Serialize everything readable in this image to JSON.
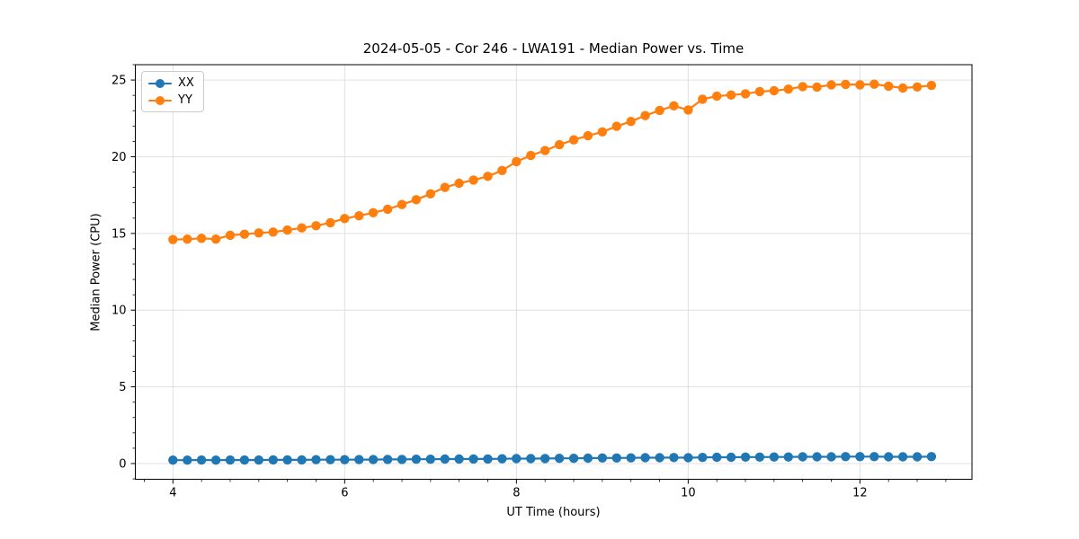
{
  "figure": {
    "title": "2024-05-05 - Cor 246 - LWA191 - Median Power vs. Time",
    "xlabel": "UT Time (hours)",
    "ylabel": "Median Power (CPU)"
  },
  "chart_data": {
    "type": "line",
    "title": "2024-05-05 - Cor 246 - LWA191 - Median Power vs. Time",
    "xlabel": "UT Time (hours)",
    "ylabel": "Median Power (CPU)",
    "xlim": [
      3.562,
      13.305
    ],
    "ylim": [
      -1.025,
      26.0
    ],
    "x_major_ticks": [
      4,
      6,
      8,
      10,
      12
    ],
    "x_major_tick_labels": [
      "4",
      "6",
      "8",
      "10",
      "12"
    ],
    "x_minor_step": 0.33333,
    "y_major_ticks": [
      0,
      5,
      10,
      15,
      20,
      25
    ],
    "y_major_tick_labels": [
      "0",
      "5",
      "10",
      "15",
      "20",
      "25"
    ],
    "y_minor_step": 1,
    "grid": "major",
    "grid_color": "#e0e0e0",
    "axes_color": "#000000",
    "background": "#ffffff",
    "legend_position": "upper left",
    "marker": "circle",
    "x": [
      4.0,
      4.167,
      4.333,
      4.5,
      4.667,
      4.833,
      5.0,
      5.167,
      5.333,
      5.5,
      5.667,
      5.833,
      6.0,
      6.167,
      6.333,
      6.5,
      6.667,
      6.833,
      7.0,
      7.167,
      7.333,
      7.5,
      7.667,
      7.833,
      8.0,
      8.167,
      8.333,
      8.5,
      8.667,
      8.833,
      9.0,
      9.167,
      9.333,
      9.5,
      9.667,
      9.833,
      10.0,
      10.167,
      10.333,
      10.5,
      10.667,
      10.833,
      11.0,
      11.167,
      11.333,
      11.5,
      11.667,
      11.833,
      12.0,
      12.167,
      12.333,
      12.5,
      12.667,
      12.833
    ],
    "series": [
      {
        "name": "XX",
        "color": "#1f77b4",
        "values": [
          0.22,
          0.22,
          0.23,
          0.22,
          0.23,
          0.23,
          0.23,
          0.24,
          0.24,
          0.24,
          0.25,
          0.25,
          0.25,
          0.26,
          0.26,
          0.27,
          0.27,
          0.28,
          0.28,
          0.29,
          0.29,
          0.3,
          0.3,
          0.31,
          0.32,
          0.32,
          0.33,
          0.34,
          0.34,
          0.35,
          0.36,
          0.36,
          0.37,
          0.38,
          0.38,
          0.39,
          0.38,
          0.4,
          0.41,
          0.41,
          0.42,
          0.42,
          0.43,
          0.43,
          0.44,
          0.44,
          0.44,
          0.45,
          0.45,
          0.45,
          0.44,
          0.44,
          0.44,
          0.45
        ]
      },
      {
        "name": "YY",
        "color": "#ff7f0e",
        "values": [
          14.6,
          14.63,
          14.68,
          14.63,
          14.88,
          14.95,
          15.03,
          15.09,
          15.22,
          15.36,
          15.5,
          15.7,
          15.97,
          16.15,
          16.35,
          16.58,
          16.88,
          17.2,
          17.58,
          18.0,
          18.27,
          18.48,
          18.72,
          19.1,
          19.68,
          20.08,
          20.4,
          20.78,
          21.1,
          21.37,
          21.62,
          21.98,
          22.3,
          22.68,
          23.02,
          23.32,
          23.05,
          23.75,
          23.95,
          24.02,
          24.1,
          24.25,
          24.3,
          24.41,
          24.57,
          24.54,
          24.68,
          24.72,
          24.69,
          24.73,
          24.6,
          24.48,
          24.55,
          24.65
        ]
      }
    ]
  }
}
